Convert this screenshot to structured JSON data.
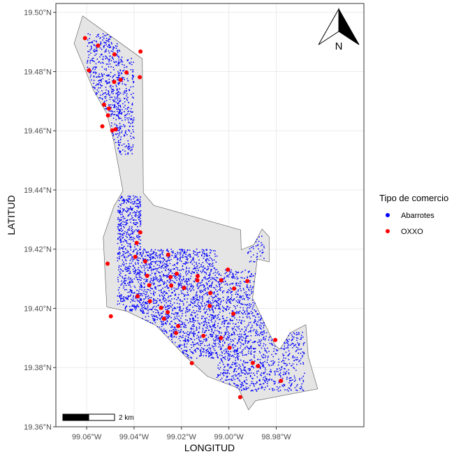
{
  "chart_data": {
    "type": "scatter",
    "title": "",
    "xlabel": "LONGITUD",
    "ylabel": "LATITUD",
    "xlim": [
      -99.073,
      -98.943
    ],
    "ylim": [
      -1,
      1
    ],
    "lat_lim": [
      19.36,
      19.503
    ],
    "x_ticks": [
      {
        "value": -99.06,
        "label": "99.06°W"
      },
      {
        "value": -99.04,
        "label": "99.04°W"
      },
      {
        "value": -99.02,
        "label": "99.02°W"
      },
      {
        "value": -99.0,
        "label": "99.00°W"
      },
      {
        "value": -98.98,
        "label": "98.98°W"
      }
    ],
    "y_ticks": [
      {
        "value": 19.36,
        "label": "19.36°N"
      },
      {
        "value": 19.38,
        "label": "19.38°N"
      },
      {
        "value": 19.4,
        "label": "19.40°N"
      },
      {
        "value": 19.42,
        "label": "19.42°N"
      },
      {
        "value": 19.44,
        "label": "19.44°N"
      },
      {
        "value": 19.46,
        "label": "19.46°N"
      },
      {
        "value": 19.48,
        "label": "19.48°N"
      },
      {
        "value": 19.5,
        "label": "19.50°N"
      }
    ],
    "grid": true,
    "legend": {
      "title": "Tipo de comercio",
      "placement": "right",
      "entries": [
        {
          "label": "Abarrotes",
          "color": "#0000ff"
        },
        {
          "label": "OXXO",
          "color": "#ff0000"
        }
      ]
    },
    "colors": {
      "abarrotes": "#0000ff",
      "oxxo": "#ff0000",
      "polygon_fill": "#e5e5e5",
      "polygon_stroke": "#555555",
      "grid": "#ebebeb",
      "panel_border": "#333333"
    },
    "boundary": [
      [
        -99.0617,
        19.4988
      ],
      [
        -99.0365,
        19.4843
      ],
      [
        -99.0361,
        19.439
      ],
      [
        -99.0317,
        19.4348
      ],
      [
        -98.995,
        19.4265
      ],
      [
        -98.9948,
        19.4198
      ],
      [
        -98.9895,
        19.4215
      ],
      [
        -98.986,
        19.4268
      ],
      [
        -98.983,
        19.4242
      ],
      [
        -98.983,
        19.4157
      ],
      [
        -98.988,
        19.4167
      ],
      [
        -98.99,
        19.4035
      ],
      [
        -98.9805,
        19.3875
      ],
      [
        -98.9785,
        19.3862
      ],
      [
        -98.974,
        19.3918
      ],
      [
        -98.9675,
        19.3945
      ],
      [
        -98.9665,
        19.3838
      ],
      [
        -98.9625,
        19.3728
      ],
      [
        -98.9887,
        19.3688
      ],
      [
        -98.9917,
        19.3657
      ],
      [
        -98.996,
        19.373
      ],
      [
        -99.009,
        19.377
      ],
      [
        -99.018,
        19.3835
      ],
      [
        -99.0307,
        19.3942
      ],
      [
        -99.043,
        19.399
      ],
      [
        -99.0515,
        19.4005
      ],
      [
        -99.053,
        19.424
      ],
      [
        -99.0485,
        19.4345
      ],
      [
        -99.0447,
        19.4397
      ],
      [
        -99.0485,
        19.4562
      ],
      [
        -99.0515,
        19.4658
      ],
      [
        -99.057,
        19.4735
      ],
      [
        -99.0653,
        19.4895
      ]
    ],
    "series": [
      {
        "name": "Abarrotes",
        "color": "#0000ff",
        "density_regions": [
          {
            "x": [
              -99.06,
              -99.046
            ],
            "lat": [
              19.465,
              19.493
            ],
            "count": 380
          },
          {
            "x": [
              -99.047,
              -99.04
            ],
            "lat": [
              19.452,
              19.485
            ],
            "count": 230
          },
          {
            "x": [
              -99.05,
              -99.045
            ],
            "lat": [
              19.455,
              19.47
            ],
            "count": 60
          },
          {
            "x": [
              -99.047,
              -99.037
            ],
            "lat": [
              19.399,
              19.438
            ],
            "count": 650
          },
          {
            "x": [
              -99.037,
              -99.005
            ],
            "lat": [
              19.383,
              19.42
            ],
            "count": 1600
          },
          {
            "x": [
              -99.005,
              -98.985
            ],
            "lat": [
              19.372,
              19.413
            ],
            "count": 950
          },
          {
            "x": [
              -98.985,
              -98.968
            ],
            "lat": [
              19.372,
              19.392
            ],
            "count": 300
          },
          {
            "x": [
              -98.992,
              -98.985
            ],
            "lat": [
              19.415,
              19.425
            ],
            "count": 40
          }
        ]
      },
      {
        "name": "OXXO",
        "color": "#ff0000",
        "points": [
          [
            -99.0607,
            19.4913
          ],
          [
            -99.0552,
            19.4888
          ],
          [
            -99.0483,
            19.4858
          ],
          [
            -99.0373,
            19.4868
          ],
          [
            -99.0591,
            19.4804
          ],
          [
            -99.0432,
            19.4797
          ],
          [
            -99.0457,
            19.4772
          ],
          [
            -99.0484,
            19.4765
          ],
          [
            -99.0376,
            19.4781
          ],
          [
            -99.0527,
            19.4688
          ],
          [
            -99.0506,
            19.4675
          ],
          [
            -99.051,
            19.4652
          ],
          [
            -99.0534,
            19.4615
          ],
          [
            -99.0492,
            19.4601
          ],
          [
            -99.0478,
            19.4605
          ],
          [
            -99.0374,
            19.4257
          ],
          [
            -99.0389,
            19.4221
          ],
          [
            -99.0353,
            19.4159
          ],
          [
            -99.0395,
            19.4174
          ],
          [
            -99.0256,
            19.4181
          ],
          [
            -99.0512,
            19.4151
          ],
          [
            -99.0345,
            19.411
          ],
          [
            -99.0336,
            19.4078
          ],
          [
            -99.022,
            19.4117
          ],
          [
            -99.0246,
            19.4106
          ],
          [
            -99.0243,
            19.4077
          ],
          [
            -99.0189,
            19.4069
          ],
          [
            -99.0132,
            19.4109
          ],
          [
            -99.0133,
            19.4095
          ],
          [
            -99.0004,
            19.4131
          ],
          [
            -99.0032,
            19.4095
          ],
          [
            -99.0078,
            19.4052
          ],
          [
            -98.9978,
            19.4067
          ],
          [
            -98.9922,
            19.4092
          ],
          [
            -99.0385,
            19.4041
          ],
          [
            -99.0333,
            19.4024
          ],
          [
            -99.0286,
            19.4002
          ],
          [
            -99.0081,
            19.4008
          ],
          [
            -98.9981,
            19.3982
          ],
          [
            -99.0258,
            19.3987
          ],
          [
            -99.0274,
            19.3965
          ],
          [
            -99.0498,
            19.3973
          ],
          [
            -99.0214,
            19.394
          ],
          [
            -99.0223,
            19.3917
          ],
          [
            -99.0107,
            19.3907
          ],
          [
            -99.0033,
            19.39
          ],
          [
            -98.9997,
            19.3867
          ],
          [
            -98.9804,
            19.3893
          ],
          [
            -98.9899,
            19.3816
          ],
          [
            -98.9877,
            19.3805
          ],
          [
            -99.0156,
            19.3815
          ],
          [
            -98.978,
            19.3755
          ],
          [
            -98.9952,
            19.37
          ]
        ]
      }
    ],
    "north_arrow": "N",
    "scale_bar": "2 km"
  }
}
